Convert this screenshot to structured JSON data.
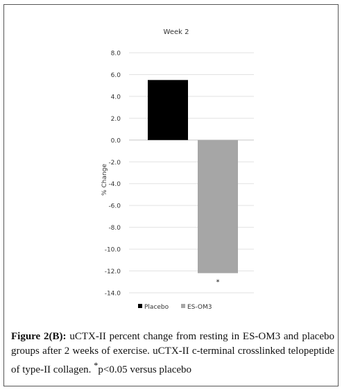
{
  "chart_data": {
    "type": "bar",
    "title": "Week 2",
    "ylabel": "% Change",
    "xlabel": "",
    "ylim": [
      -14.0,
      8.0
    ],
    "yticks": [
      "8.0",
      "6.0",
      "4.0",
      "2.0",
      "0.0",
      "-2.0",
      "-4.0",
      "-6.0",
      "-8.0",
      "-10.0",
      "-12.0",
      "-14.0"
    ],
    "grid": true,
    "legend_position": "bottom",
    "series": [
      {
        "name": "Placebo",
        "values": [
          5.5
        ],
        "color": "#000000"
      },
      {
        "name": "ES-OM3",
        "values": [
          -12.2
        ],
        "color": "#a6a6a6"
      }
    ],
    "annotations": [
      "*"
    ]
  },
  "caption": {
    "label": "Figure 2(B):",
    "text": "uCTX-II percent change from resting in ES-OM3 and placebo groups after 2 weeks of exercise. uCTX-II c-terminal crosslinked telopeptide of type-II collagen.",
    "sup": "*",
    "tail": "p<0.05 versus placebo"
  }
}
